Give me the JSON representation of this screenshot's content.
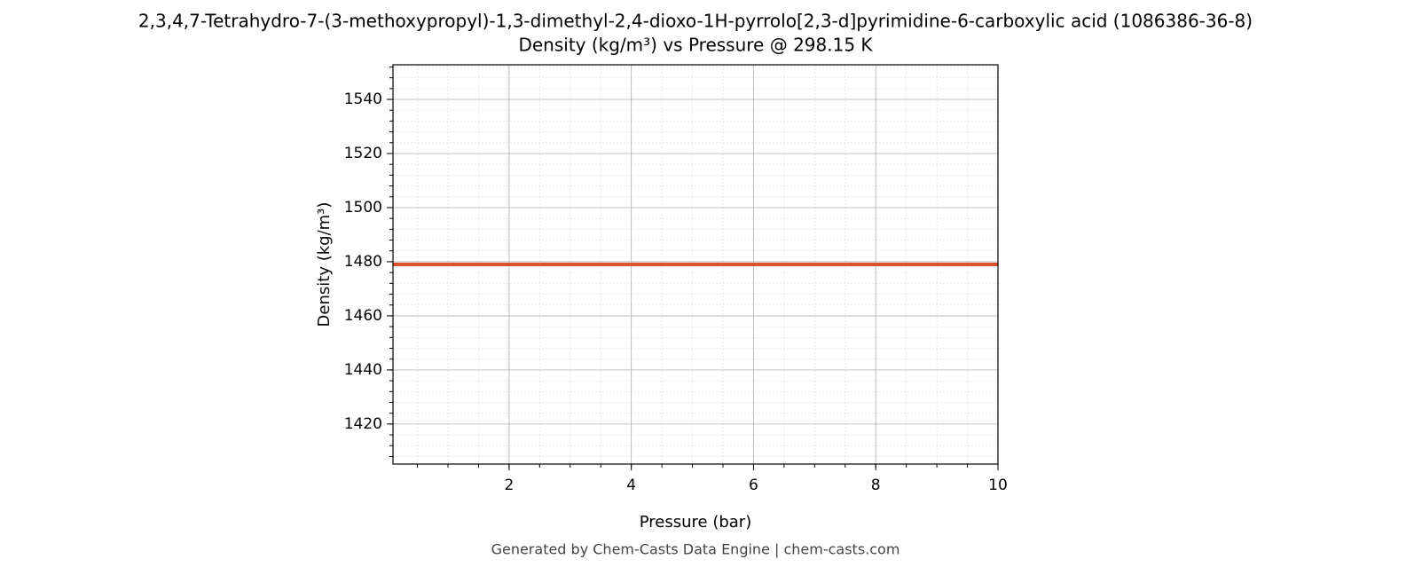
{
  "chart_data": {
    "type": "line",
    "title": "2,3,4,7-Tetrahydro-7-(3-methoxypropyl)-1,3-dimethyl-2,4-dioxo-1H-pyrrolo[2,3-d]pyrimidine-6-carboxylic acid (1086386-36-8)",
    "subtitle": "Density (kg/m³) vs Pressure @ 298.15 K",
    "x_label": "Pressure (bar)",
    "y_label": "Density (kg/m³)",
    "footer": "Generated by Chem-Casts Data Engine | chem-casts.com",
    "x": [
      0.1,
      2,
      4,
      6,
      8,
      10
    ],
    "series": [
      {
        "name": "Density",
        "color": "#d9532b",
        "values": [
          1479,
          1479,
          1479,
          1479,
          1479,
          1479
        ]
      }
    ],
    "xlim": [
      0.1,
      10
    ],
    "ylim": [
      1405.2,
      1552.8
    ],
    "xticks": [
      2,
      4,
      6,
      8,
      10
    ],
    "yticks": [
      1420,
      1440,
      1460,
      1480,
      1500,
      1520,
      1540
    ],
    "grid": true,
    "minor_grid": true
  }
}
